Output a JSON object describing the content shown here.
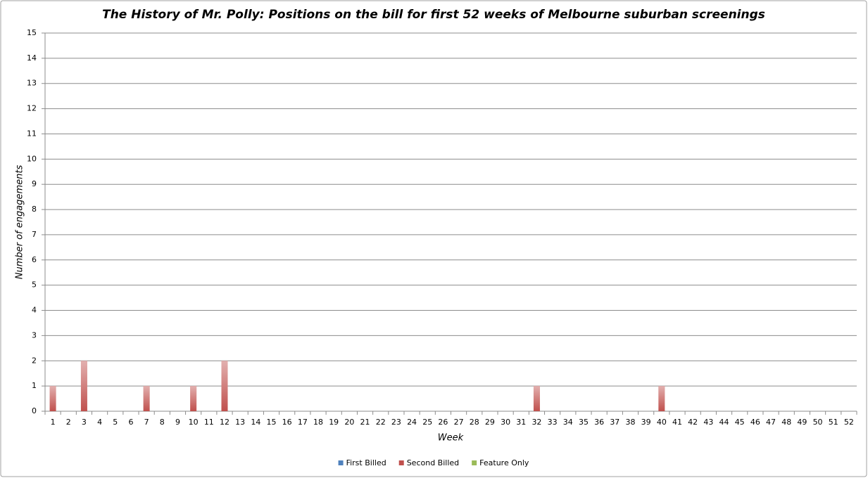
{
  "chart_data": {
    "type": "stacked_bar",
    "title": "The History of Mr. Polly: Positions on the bill for first 52 weeks of Melbourne suburban screenings",
    "x_label": "Week",
    "y_label": "Number of engagements",
    "categories": [
      1,
      2,
      3,
      4,
      5,
      6,
      7,
      8,
      9,
      10,
      11,
      12,
      13,
      14,
      15,
      16,
      17,
      18,
      19,
      20,
      21,
      22,
      23,
      24,
      25,
      26,
      27,
      28,
      29,
      30,
      31,
      32,
      33,
      34,
      35,
      36,
      37,
      38,
      39,
      40,
      41,
      42,
      43,
      44,
      45,
      46,
      47,
      48,
      49,
      50,
      51,
      52
    ],
    "series": [
      {
        "name": "First Billed",
        "color": "#4f81bd",
        "values": [
          0,
          0,
          0,
          0,
          0,
          0,
          0,
          0,
          0,
          0,
          0,
          0,
          0,
          0,
          0,
          0,
          0,
          0,
          0,
          0,
          0,
          0,
          0,
          0,
          0,
          0,
          0,
          0,
          0,
          0,
          0,
          0,
          0,
          0,
          0,
          0,
          0,
          0,
          0,
          0,
          0,
          0,
          0,
          0,
          0,
          0,
          0,
          0,
          0,
          0,
          0,
          0
        ]
      },
      {
        "name": "Second Billed",
        "color": "#c0504d",
        "values": [
          1,
          0,
          2,
          0,
          0,
          0,
          1,
          0,
          0,
          1,
          0,
          2,
          0,
          0,
          0,
          0,
          0,
          0,
          0,
          0,
          0,
          0,
          0,
          0,
          0,
          0,
          0,
          0,
          0,
          0,
          0,
          1,
          0,
          0,
          0,
          0,
          0,
          0,
          0,
          1,
          0,
          0,
          0,
          0,
          0,
          0,
          0,
          0,
          0,
          0,
          0,
          0
        ]
      },
      {
        "name": "Feature Only",
        "color": "#9bbb59",
        "values": [
          0,
          0,
          0,
          0,
          0,
          0,
          0,
          0,
          0,
          0,
          0,
          0,
          0,
          0,
          0,
          0,
          0,
          0,
          0,
          0,
          0,
          0,
          0,
          0,
          0,
          0,
          0,
          0,
          0,
          0,
          0,
          0,
          0,
          0,
          0,
          0,
          0,
          0,
          0,
          0,
          0,
          0,
          0,
          0,
          0,
          0,
          0,
          0,
          0,
          0,
          0,
          0
        ]
      }
    ],
    "ylim": [
      0,
      15
    ],
    "yticks": [
      0,
      1,
      2,
      3,
      4,
      5,
      6,
      7,
      8,
      9,
      10,
      11,
      12,
      13,
      14,
      15
    ],
    "grid": true,
    "legend": "bottom"
  }
}
